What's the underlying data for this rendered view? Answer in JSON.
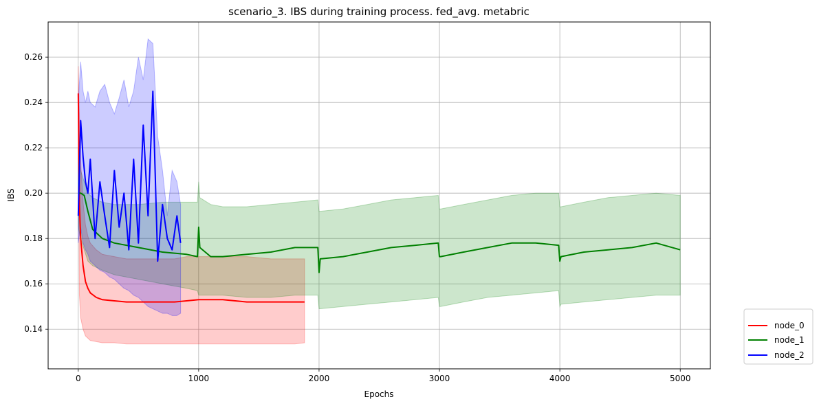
{
  "chart_data": {
    "type": "line",
    "title": "scenario_3. IBS during training process. fed_avg. metabric",
    "xlabel": "Epochs",
    "ylabel": "IBS",
    "xlim": [
      -250,
      5250
    ],
    "ylim": [
      0.1225,
      0.2755
    ],
    "xticks": [
      {
        "value": 0,
        "label": "0"
      },
      {
        "value": 1000,
        "label": "1000"
      },
      {
        "value": 2000,
        "label": "2000"
      },
      {
        "value": 3000,
        "label": "3000"
      },
      {
        "value": 4000,
        "label": "4000"
      },
      {
        "value": 5000,
        "label": "5000"
      }
    ],
    "yticks": [
      {
        "value": 0.14,
        "label": "0.14"
      },
      {
        "value": 0.16,
        "label": "0.16"
      },
      {
        "value": 0.18,
        "label": "0.18"
      },
      {
        "value": 0.2,
        "label": "0.20"
      },
      {
        "value": 0.22,
        "label": "0.22"
      },
      {
        "value": 0.24,
        "label": "0.24"
      },
      {
        "value": 0.26,
        "label": "0.26"
      }
    ],
    "grid": true,
    "legend_position": "outside-bottom-right",
    "series": [
      {
        "name": "node_0",
        "color": "#ff0000",
        "band_color": "#ff0000",
        "x": [
          0,
          10,
          20,
          40,
          60,
          80,
          100,
          150,
          200,
          300,
          400,
          500,
          600,
          700,
          800,
          900,
          1000,
          1200,
          1400,
          1600,
          1800,
          1880
        ],
        "mean": [
          0.244,
          0.195,
          0.18,
          0.168,
          0.161,
          0.158,
          0.156,
          0.154,
          0.153,
          0.1525,
          0.152,
          0.152,
          0.152,
          0.152,
          0.152,
          0.1525,
          0.153,
          0.153,
          0.152,
          0.152,
          0.152,
          0.152
        ],
        "lower": [
          0.232,
          0.155,
          0.145,
          0.14,
          0.137,
          0.136,
          0.135,
          0.1345,
          0.134,
          0.134,
          0.1335,
          0.1335,
          0.1335,
          0.1335,
          0.1335,
          0.1335,
          0.1335,
          0.1335,
          0.1335,
          0.1335,
          0.1335,
          0.134
        ],
        "upper": [
          0.256,
          0.235,
          0.215,
          0.196,
          0.186,
          0.181,
          0.178,
          0.175,
          0.173,
          0.172,
          0.171,
          0.171,
          0.171,
          0.171,
          0.171,
          0.172,
          0.172,
          0.172,
          0.172,
          0.171,
          0.171,
          0.171
        ]
      },
      {
        "name": "node_1",
        "color": "#008000",
        "band_color": "#008000",
        "x": [
          0,
          20,
          50,
          80,
          120,
          200,
          300,
          500,
          700,
          900,
          990,
          1000,
          1010,
          1100,
          1200,
          1400,
          1600,
          1800,
          1990,
          2000,
          2010,
          2200,
          2400,
          2600,
          2800,
          2990,
          3000,
          3010,
          3200,
          3400,
          3600,
          3800,
          3990,
          4000,
          4010,
          4200,
          4400,
          4600,
          4800,
          5000
        ],
        "mean": [
          0.2,
          0.2,
          0.199,
          0.192,
          0.184,
          0.18,
          0.178,
          0.176,
          0.174,
          0.173,
          0.172,
          0.185,
          0.176,
          0.172,
          0.172,
          0.173,
          0.174,
          0.176,
          0.176,
          0.165,
          0.171,
          0.172,
          0.174,
          0.176,
          0.177,
          0.178,
          0.172,
          0.172,
          0.174,
          0.176,
          0.178,
          0.178,
          0.177,
          0.17,
          0.172,
          0.174,
          0.175,
          0.176,
          0.178,
          0.175
        ],
        "lower": [
          0.185,
          0.18,
          0.175,
          0.17,
          0.168,
          0.166,
          0.164,
          0.162,
          0.16,
          0.158,
          0.157,
          0.155,
          0.155,
          0.155,
          0.155,
          0.154,
          0.154,
          0.155,
          0.155,
          0.149,
          0.149,
          0.15,
          0.151,
          0.152,
          0.153,
          0.154,
          0.15,
          0.15,
          0.152,
          0.154,
          0.155,
          0.156,
          0.157,
          0.15,
          0.151,
          0.152,
          0.153,
          0.154,
          0.155,
          0.155
        ],
        "upper": [
          0.22,
          0.21,
          0.205,
          0.2,
          0.198,
          0.196,
          0.195,
          0.195,
          0.196,
          0.196,
          0.196,
          0.205,
          0.198,
          0.195,
          0.194,
          0.194,
          0.195,
          0.196,
          0.197,
          0.192,
          0.192,
          0.193,
          0.195,
          0.197,
          0.198,
          0.199,
          0.193,
          0.193,
          0.195,
          0.197,
          0.199,
          0.2,
          0.2,
          0.194,
          0.194,
          0.196,
          0.198,
          0.199,
          0.2,
          0.199
        ]
      },
      {
        "name": "node_2",
        "color": "#0000ff",
        "band_color": "#0000ff",
        "x": [
          0,
          20,
          40,
          60,
          80,
          100,
          140,
          180,
          220,
          260,
          300,
          340,
          380,
          420,
          460,
          500,
          540,
          580,
          620,
          660,
          700,
          740,
          780,
          820,
          850
        ],
        "mean": [
          0.19,
          0.232,
          0.216,
          0.205,
          0.2,
          0.215,
          0.18,
          0.205,
          0.19,
          0.176,
          0.21,
          0.185,
          0.2,
          0.175,
          0.215,
          0.178,
          0.23,
          0.19,
          0.245,
          0.17,
          0.195,
          0.18,
          0.175,
          0.19,
          0.178
        ],
        "lower": [
          0.178,
          0.185,
          0.178,
          0.175,
          0.173,
          0.17,
          0.168,
          0.166,
          0.165,
          0.163,
          0.162,
          0.16,
          0.158,
          0.157,
          0.155,
          0.154,
          0.152,
          0.15,
          0.149,
          0.148,
          0.147,
          0.147,
          0.146,
          0.146,
          0.147
        ],
        "upper": [
          0.24,
          0.258,
          0.245,
          0.24,
          0.245,
          0.24,
          0.238,
          0.245,
          0.248,
          0.24,
          0.235,
          0.242,
          0.25,
          0.238,
          0.245,
          0.26,
          0.25,
          0.268,
          0.266,
          0.225,
          0.21,
          0.19,
          0.21,
          0.205,
          0.195
        ]
      }
    ]
  }
}
